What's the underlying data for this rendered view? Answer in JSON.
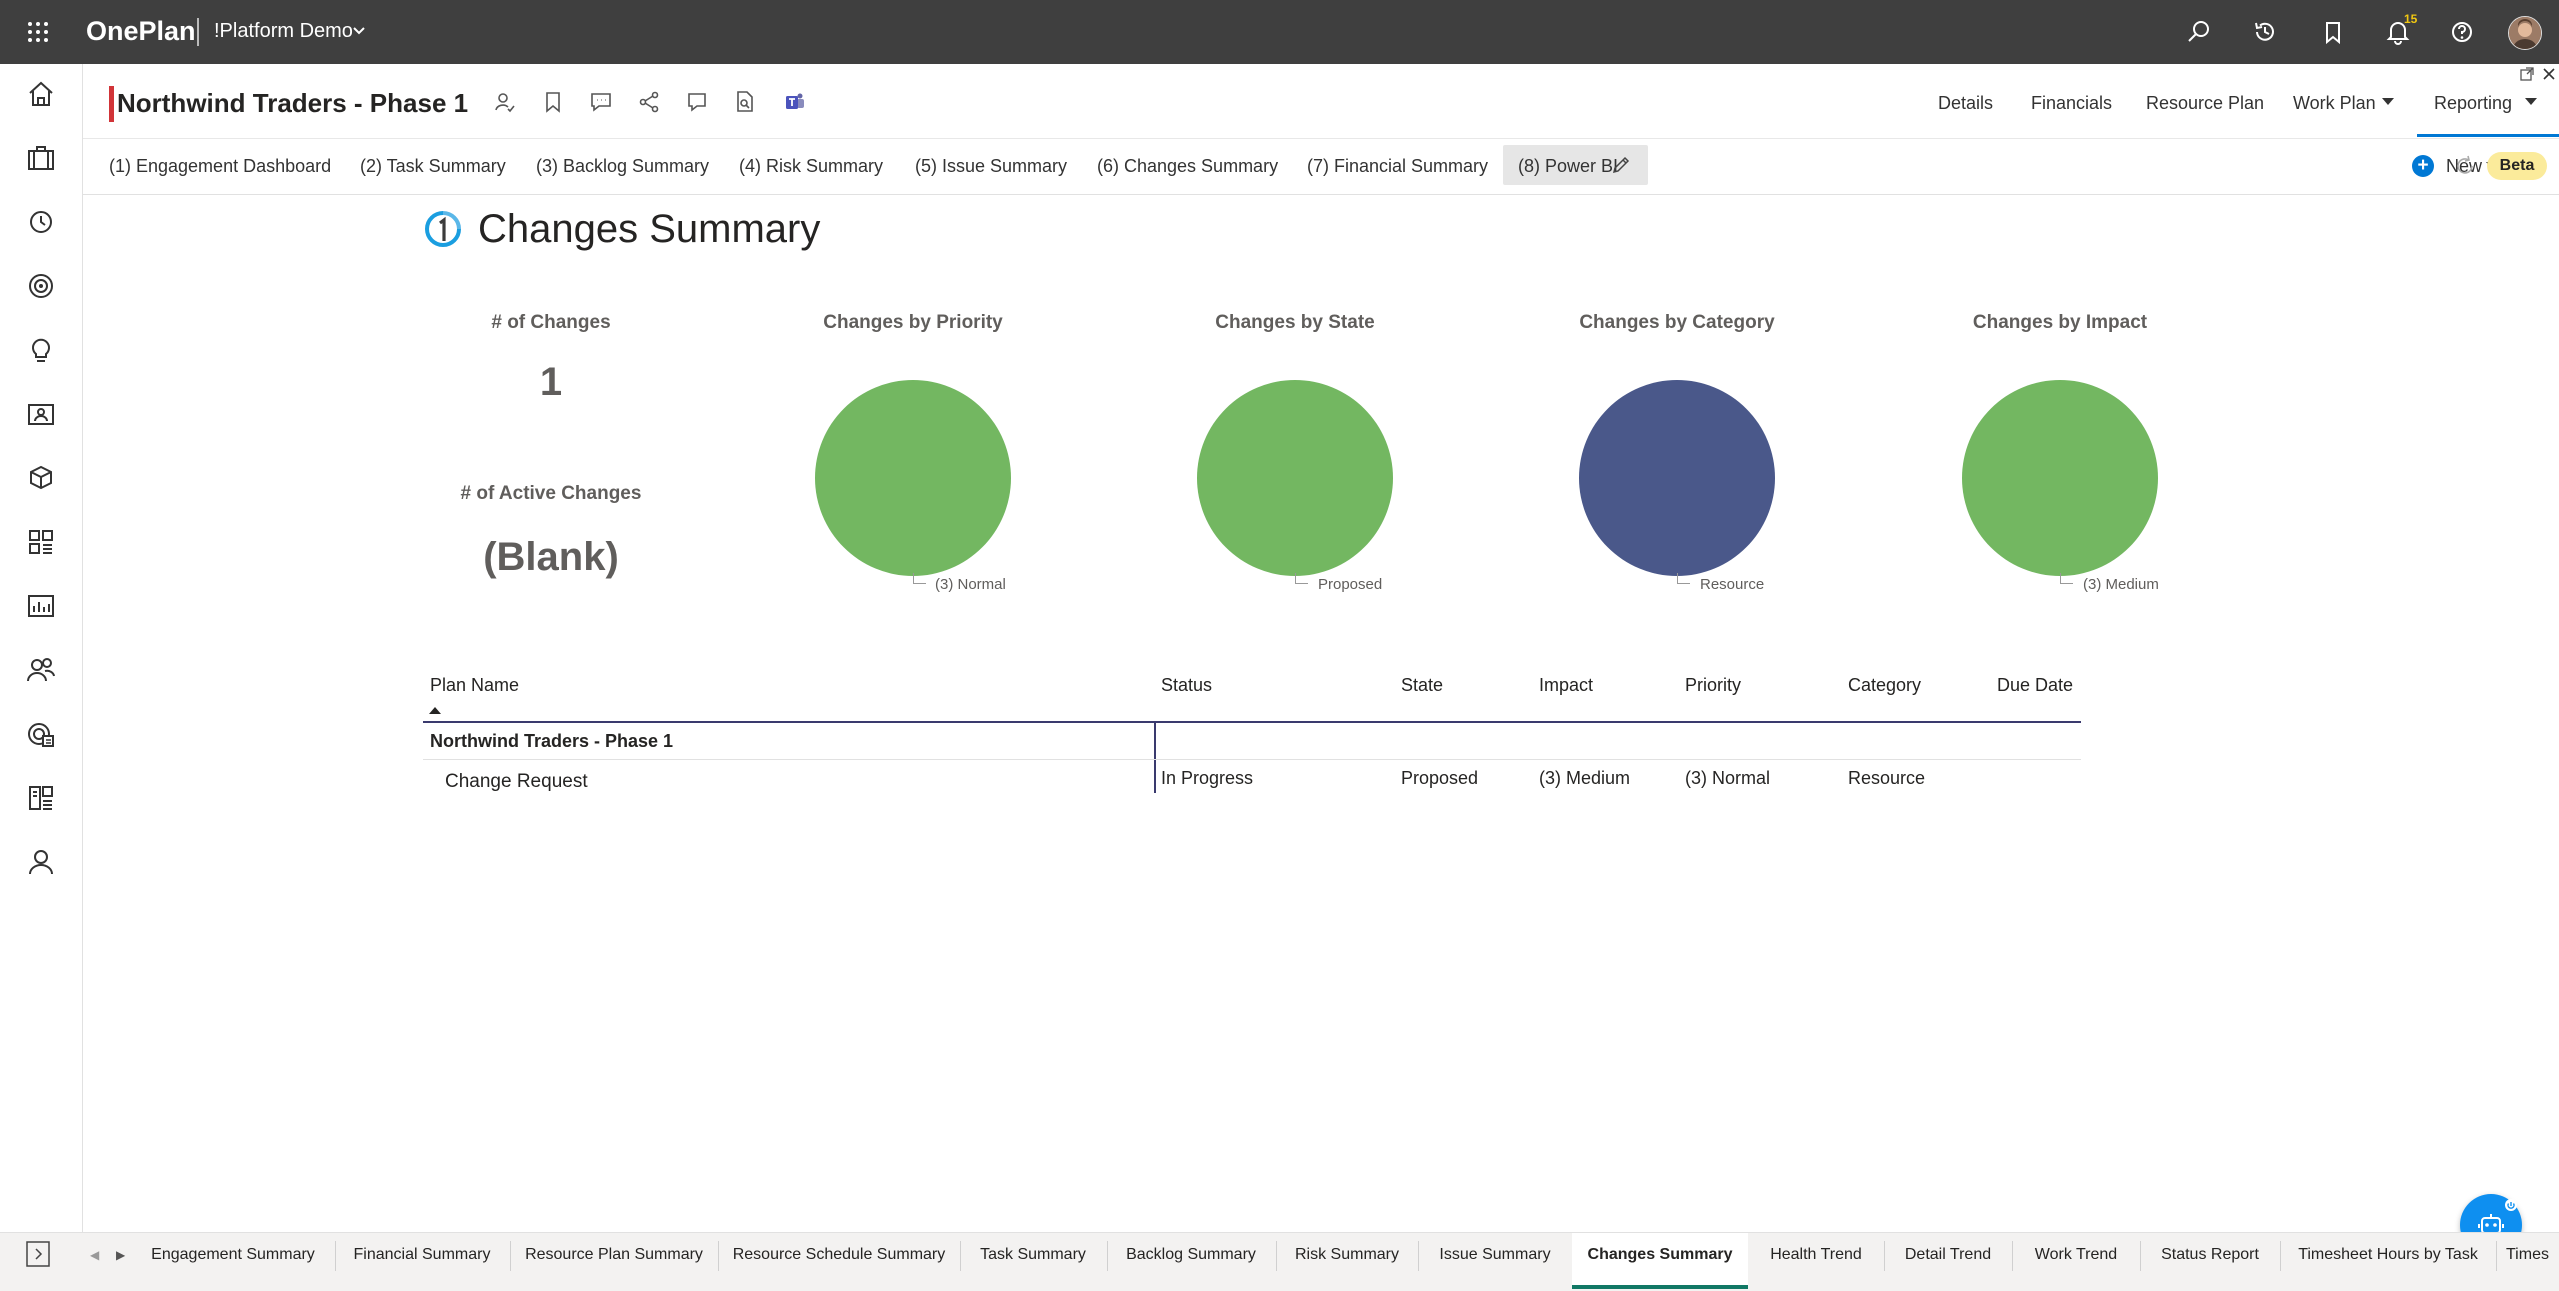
{
  "topbar": {
    "brand": "OnePlan",
    "org": "!Platform Demo",
    "notification_count": "15",
    "icons": [
      "search-icon",
      "history-icon",
      "bookmark-icon",
      "bell-icon",
      "help-icon"
    ]
  },
  "leftnav": {
    "icons": [
      "home-icon",
      "portfolio-icon",
      "timesheet-icon",
      "target-icon",
      "idea-icon",
      "resource-card-icon",
      "packages-icon",
      "dashboard-icon",
      "reports-icon",
      "people-icon",
      "resource-planner-icon",
      "boards-icon",
      "user-icon"
    ]
  },
  "plan": {
    "title": "Northwind Traders - Phase 1"
  },
  "header_nav": {
    "details": "Details",
    "financials": "Financials",
    "resource_plan": "Resource Plan",
    "work_plan": "Work Plan",
    "reporting": "Reporting"
  },
  "report_tabs": [
    "(1) Engagement Dashboard",
    "(2) Task Summary",
    "(3) Backlog Summary",
    "(4) Risk Summary",
    "(5) Issue Summary",
    "(6) Changes Summary",
    "(7) Financial Summary",
    "(8) Power BI"
  ],
  "toolbar": {
    "new_label": "New",
    "beta_label": "Beta"
  },
  "report": {
    "title": "Changes Summary",
    "card_changes_title": "# of Changes",
    "card_changes_value": "1",
    "card_active_title": "# of Active Changes",
    "card_active_value": "(Blank)"
  },
  "charts": [
    {
      "title": "Changes by Priority",
      "label": "(3) Normal",
      "color": "#73b761"
    },
    {
      "title": "Changes by State",
      "label": "Proposed",
      "color": "#73b761"
    },
    {
      "title": "Changes by Category",
      "label": "Resource",
      "color": "#4a588a"
    },
    {
      "title": "Changes by Impact",
      "label": "(3) Medium",
      "color": "#73b761"
    }
  ],
  "chart_data": [
    {
      "type": "pie",
      "title": "Changes by Priority",
      "categories": [
        "(3) Normal"
      ],
      "values": [
        1
      ]
    },
    {
      "type": "pie",
      "title": "Changes by State",
      "categories": [
        "Proposed"
      ],
      "values": [
        1
      ]
    },
    {
      "type": "pie",
      "title": "Changes by Category",
      "categories": [
        "Resource"
      ],
      "values": [
        1
      ]
    },
    {
      "type": "pie",
      "title": "Changes by Impact",
      "categories": [
        "(3) Medium"
      ],
      "values": [
        1
      ]
    }
  ],
  "table": {
    "headers": {
      "plan_name": "Plan Name",
      "status": "Status",
      "state": "State",
      "impact": "Impact",
      "priority": "Priority",
      "category": "Category",
      "due_date": "Due Date"
    },
    "group": "Northwind Traders - Phase 1",
    "row": {
      "plan_name": "Change Request",
      "status": "In Progress",
      "state": "Proposed",
      "impact": "(3) Medium",
      "priority": "(3) Normal",
      "category": "Resource",
      "due_date": ""
    }
  },
  "pages": [
    "Engagement Summary",
    "Financial Summary",
    "Resource Plan Summary",
    "Resource Schedule Summary",
    "Task Summary",
    "Backlog Summary",
    "Risk Summary",
    "Issue Summary",
    "Changes Summary",
    "Health Trend",
    "Detail Trend",
    "Work Trend",
    "Status Report",
    "Timesheet Hours by Task",
    "Times"
  ],
  "active_page": "Changes Summary",
  "colors": {
    "accent": "#0078d4",
    "brand_red": "#d13438",
    "pie_green": "#73b761",
    "pie_navy": "#4a588a",
    "active_page_underline": "#117865"
  }
}
